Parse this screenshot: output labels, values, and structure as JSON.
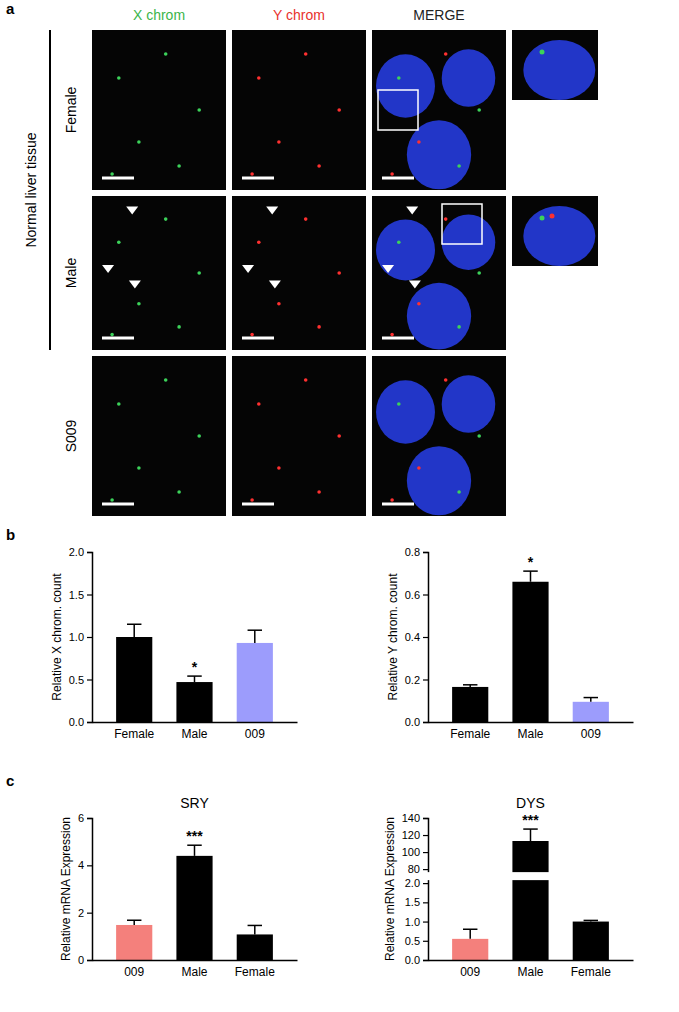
{
  "figure": {
    "panel_labels": [
      "a",
      "b",
      "c"
    ],
    "columns": [
      "X chrom",
      "Y chrom",
      "MERGE"
    ],
    "group_label": "Normal liver tissue",
    "rows": [
      "Female",
      "Male",
      "S009"
    ]
  },
  "chart_data": [
    {
      "type": "bar",
      "y_label": "Relative X chrom. count",
      "categories": [
        "Female",
        "Male",
        "009"
      ],
      "values": [
        1.0,
        0.47,
        0.93
      ],
      "errors": [
        0.15,
        0.07,
        0.15
      ],
      "significance": [
        null,
        "*",
        null
      ],
      "colors": [
        "#000000",
        "#000000",
        "#9c9cfc"
      ],
      "ylim": [
        0,
        2
      ],
      "yticks": [
        {
          "value": 0,
          "label": "0.0"
        },
        {
          "value": 0.5,
          "label": "0.5"
        },
        {
          "value": 1,
          "label": "1.0"
        },
        {
          "value": 1.5,
          "label": "1.5"
        },
        {
          "value": 2,
          "label": "2.0"
        }
      ]
    },
    {
      "type": "bar",
      "y_label": "Relative Y chrom. count",
      "categories": [
        "Female",
        "Male",
        "009"
      ],
      "values": [
        0.165,
        0.66,
        0.095
      ],
      "errors": [
        0.01,
        0.05,
        0.02
      ],
      "significance": [
        null,
        "*",
        null
      ],
      "colors": [
        "#000000",
        "#000000",
        "#9c9cfc"
      ],
      "ylim": [
        0,
        0.8
      ],
      "yticks": [
        {
          "value": 0,
          "label": "0.0"
        },
        0.2,
        0.4,
        0.6,
        0.8
      ]
    },
    {
      "type": "bar",
      "title": "SRY",
      "y_label": "Relative mRNA Expression",
      "categories": [
        "009",
        "Male",
        "Female"
      ],
      "values": [
        1.48,
        4.4,
        1.08
      ],
      "errors": [
        0.2,
        0.45,
        0.38
      ],
      "significance": [
        null,
        "***",
        null
      ],
      "colors": [
        "#f4807c",
        "#000000",
        "#000000"
      ],
      "ylim": [
        0,
        6
      ],
      "yticks": [
        0,
        2,
        4,
        6
      ]
    },
    {
      "type": "bar",
      "title": "DYS",
      "y_label": "Relative mRNA Expression",
      "categories": [
        "009",
        "Male",
        "Female"
      ],
      "values": [
        0.55,
        113,
        1.0
      ],
      "errors": [
        0.25,
        14,
        0.03
      ],
      "significance": [
        null,
        "***",
        null
      ],
      "colors": [
        "#f4807c",
        "#000000",
        "#000000"
      ],
      "ylim": [
        0,
        140
      ],
      "axis_break": [
        2,
        80
      ],
      "yticks": [
        {
          "value": 0,
          "label": "0.0"
        },
        {
          "value": 0.5,
          "label": "0.5"
        },
        {
          "value": 1,
          "label": "1.0"
        },
        {
          "value": 1.5,
          "label": "1.5"
        },
        {
          "value": 2,
          "label": "2.0"
        },
        80,
        100,
        120,
        140
      ]
    }
  ]
}
